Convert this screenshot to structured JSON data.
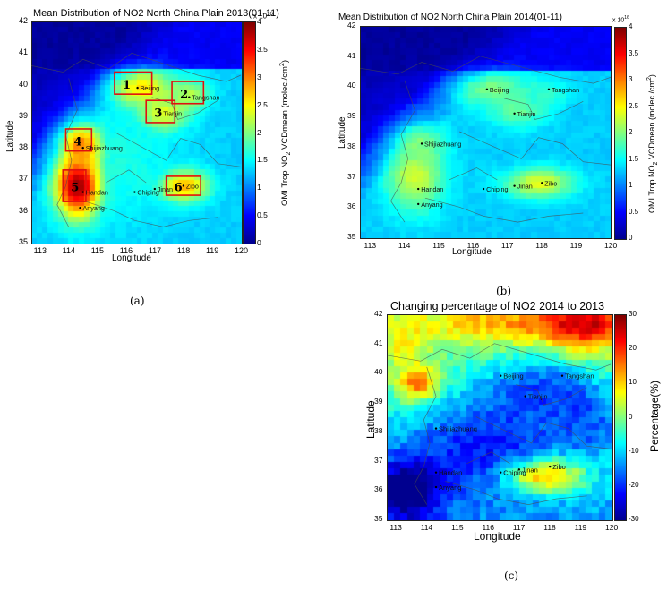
{
  "chart_data": [
    {
      "type": "heatmap",
      "title": "Mean Distribution of NO2 North China Plain 2013(01-11)",
      "xlabel": "Longitude",
      "ylabel": "Latitude",
      "colorbar_label": "OMI Trop NO",
      "colorbar_label_sub": "2",
      "colorbar_label_tail": " VCDmean (molec./cm",
      "colorbar_label_sup": "2",
      "colorbar_label_end": ")",
      "colorbar_exponent": "x 10",
      "colorbar_exponent_sup": "16",
      "xlim": [
        112.7,
        120
      ],
      "ylim": [
        35,
        42
      ],
      "x_ticks": [
        "113",
        "114",
        "115",
        "116",
        "117",
        "118",
        "119",
        "120"
      ],
      "y_ticks": [
        "35",
        "36",
        "37",
        "38",
        "39",
        "40",
        "41",
        "42"
      ],
      "colorbar_range": [
        0,
        4
      ],
      "colorbar_ticks": [
        "0",
        "0.5",
        "1",
        "1.5",
        "2",
        "2.5",
        "3",
        "3.5",
        "4"
      ],
      "cities": [
        {
          "name": "Beijing",
          "lon": 116.4,
          "lat": 39.9
        },
        {
          "name": "Tangshan",
          "lon": 118.2,
          "lat": 39.6
        },
        {
          "name": "Tianjin",
          "lon": 117.2,
          "lat": 39.1
        },
        {
          "name": "Shijiazhuang",
          "lon": 114.5,
          "lat": 38.0
        },
        {
          "name": "Handan",
          "lon": 114.5,
          "lat": 36.6
        },
        {
          "name": "Anyang",
          "lon": 114.4,
          "lat": 36.1
        },
        {
          "name": "Chiping",
          "lon": 116.3,
          "lat": 36.6
        },
        {
          "name": "Jinan",
          "lon": 117.0,
          "lat": 36.7
        },
        {
          "name": "Zibo",
          "lon": 118.0,
          "lat": 36.8
        }
      ],
      "regions": [
        {
          "label": "1",
          "lon_min": 115.6,
          "lon_max": 116.9,
          "lat_min": 39.7,
          "lat_max": 40.4
        },
        {
          "label": "2",
          "lon_min": 117.6,
          "lon_max": 118.7,
          "lat_min": 39.4,
          "lat_max": 40.1
        },
        {
          "label": "3",
          "lon_min": 116.7,
          "lon_max": 117.7,
          "lat_min": 38.8,
          "lat_max": 39.5
        },
        {
          "label": "4",
          "lon_min": 113.9,
          "lon_max": 114.8,
          "lat_min": 37.9,
          "lat_max": 38.6
        },
        {
          "label": "5",
          "lon_min": 113.8,
          "lon_max": 114.6,
          "lat_min": 36.3,
          "lat_max": 37.3
        },
        {
          "label": "6",
          "lon_min": 117.4,
          "lon_max": 118.6,
          "lat_min": 36.5,
          "lat_max": 37.1
        }
      ],
      "hotspots": [
        {
          "lon": 114.3,
          "lat": 36.8,
          "value": 3.9,
          "sx": 0.55,
          "sy": 0.7
        },
        {
          "lon": 114.4,
          "lat": 38.1,
          "value": 3.0,
          "sx": 0.5,
          "sy": 0.5
        },
        {
          "lon": 116.5,
          "lat": 39.9,
          "value": 2.6,
          "sx": 0.8,
          "sy": 0.4
        },
        {
          "lon": 117.3,
          "lat": 39.1,
          "value": 2.4,
          "sx": 0.6,
          "sy": 0.4
        },
        {
          "lon": 118.2,
          "lat": 39.7,
          "value": 2.2,
          "sx": 0.5,
          "sy": 0.35
        },
        {
          "lon": 118.0,
          "lat": 36.8,
          "value": 2.8,
          "sx": 0.6,
          "sy": 0.35
        },
        {
          "lon": 115.5,
          "lat": 37.5,
          "value": 1.6,
          "sx": 1.6,
          "sy": 1.3
        }
      ],
      "caption": "(a)"
    },
    {
      "type": "heatmap",
      "title": "Mean Distribution of NO2 North China Plain 2014(01-11)",
      "xlabel": "Longitude",
      "ylabel": "Latitude",
      "colorbar_label": "OMI Trop NO",
      "colorbar_label_sub": "2",
      "colorbar_label_tail": " VCDmean (molec./cm",
      "colorbar_label_sup": "2",
      "colorbar_label_end": ")",
      "colorbar_exponent": "x 10",
      "colorbar_exponent_sup": "16",
      "xlim": [
        112.7,
        120
      ],
      "ylim": [
        35,
        42
      ],
      "x_ticks": [
        "113",
        "114",
        "115",
        "116",
        "117",
        "118",
        "119",
        "120"
      ],
      "y_ticks": [
        "35",
        "36",
        "37",
        "38",
        "39",
        "40",
        "41",
        "42"
      ],
      "colorbar_range": [
        0,
        4
      ],
      "colorbar_ticks": [
        "0",
        "0.5",
        "1",
        "1.5",
        "2",
        "2.5",
        "3",
        "3.5",
        "4"
      ],
      "cities": [
        {
          "name": "Beijing",
          "lon": 116.4,
          "lat": 39.9
        },
        {
          "name": "Tangshan",
          "lon": 118.2,
          "lat": 39.9
        },
        {
          "name": "Tianjin",
          "lon": 117.2,
          "lat": 39.1
        },
        {
          "name": "Shijiazhuang",
          "lon": 114.5,
          "lat": 38.1
        },
        {
          "name": "Handan",
          "lon": 114.4,
          "lat": 36.6
        },
        {
          "name": "Anyang",
          "lon": 114.4,
          "lat": 36.1
        },
        {
          "name": "Chiping",
          "lon": 116.3,
          "lat": 36.6
        },
        {
          "name": "Jinan",
          "lon": 117.2,
          "lat": 36.7
        },
        {
          "name": "Zibo",
          "lon": 118.0,
          "lat": 36.8
        }
      ],
      "hotspots": [
        {
          "lon": 114.3,
          "lat": 37.0,
          "value": 2.3,
          "sx": 0.6,
          "sy": 0.8
        },
        {
          "lon": 114.4,
          "lat": 38.1,
          "value": 2.0,
          "sx": 0.5,
          "sy": 0.5
        },
        {
          "lon": 116.5,
          "lat": 39.9,
          "value": 2.0,
          "sx": 0.8,
          "sy": 0.4
        },
        {
          "lon": 117.3,
          "lat": 39.2,
          "value": 1.9,
          "sx": 0.6,
          "sy": 0.4
        },
        {
          "lon": 118.1,
          "lat": 39.8,
          "value": 1.7,
          "sx": 0.5,
          "sy": 0.35
        },
        {
          "lon": 117.9,
          "lat": 36.8,
          "value": 2.4,
          "sx": 0.7,
          "sy": 0.35
        },
        {
          "lon": 115.5,
          "lat": 37.5,
          "value": 1.2,
          "sx": 1.6,
          "sy": 1.3
        }
      ],
      "caption": "(b)"
    },
    {
      "type": "heatmap",
      "title": "Changing percentage of NO2 2014 to 2013",
      "xlabel": "Longitude",
      "ylabel": "Latitude",
      "colorbar_label": "Percentage(%)",
      "xlim": [
        112.7,
        120
      ],
      "ylim": [
        35,
        42
      ],
      "x_ticks": [
        "113",
        "114",
        "115",
        "116",
        "117",
        "118",
        "119",
        "120"
      ],
      "y_ticks": [
        "35",
        "36",
        "37",
        "38",
        "39",
        "40",
        "41",
        "42"
      ],
      "colorbar_range": [
        -30,
        30
      ],
      "colorbar_ticks": [
        "-30",
        "-20",
        "-10",
        "0",
        "10",
        "20",
        "30"
      ],
      "cities": [
        {
          "name": "Beijing",
          "lon": 116.4,
          "lat": 39.9
        },
        {
          "name": "Tangshan",
          "lon": 118.4,
          "lat": 39.9
        },
        {
          "name": "Tianjin",
          "lon": 117.2,
          "lat": 39.2
        },
        {
          "name": "Shijiazhuang",
          "lon": 114.3,
          "lat": 38.1
        },
        {
          "name": "Handan",
          "lon": 114.3,
          "lat": 36.6
        },
        {
          "name": "Anyang",
          "lon": 114.3,
          "lat": 36.1
        },
        {
          "name": "Chiping",
          "lon": 116.4,
          "lat": 36.6
        },
        {
          "name": "Jinan",
          "lon": 117.0,
          "lat": 36.7
        },
        {
          "name": "Zibo",
          "lon": 118.0,
          "lat": 36.8
        }
      ],
      "hotspots": [
        {
          "lon": 117.8,
          "lat": 36.5,
          "value": 26,
          "sx": 0.9,
          "sy": 0.45
        },
        {
          "lon": 119.2,
          "lat": 41.6,
          "value": 22,
          "sx": 1.0,
          "sy": 0.6
        },
        {
          "lon": 116.5,
          "lat": 41.7,
          "value": 12,
          "sx": 1.8,
          "sy": 0.5
        },
        {
          "lon": 113.7,
          "lat": 39.6,
          "value": 20,
          "sx": 0.5,
          "sy": 0.4
        },
        {
          "lon": 113.2,
          "lat": 40.9,
          "value": 8,
          "sx": 0.7,
          "sy": 0.6
        },
        {
          "lon": 116.0,
          "lat": 37.6,
          "value": -14,
          "sx": 1.8,
          "sy": 1.2
        },
        {
          "lon": 113.3,
          "lat": 36.0,
          "value": -22,
          "sx": 0.8,
          "sy": 0.8
        },
        {
          "lon": 117.6,
          "lat": 39.6,
          "value": -12,
          "sx": 1.2,
          "sy": 0.7
        },
        {
          "lon": 119.3,
          "lat": 38.5,
          "value": -9,
          "sx": 0.8,
          "sy": 0.8
        }
      ],
      "caption": "(c)"
    }
  ],
  "layout_text": {
    "caption_a": "(a)",
    "caption_b": "(b)",
    "caption_c": "(c)"
  },
  "colors": {
    "jet": [
      "#00008f",
      "#0000ff",
      "#0080ff",
      "#00ffff",
      "#80ff80",
      "#ffff00",
      "#ff8000",
      "#ff0000",
      "#800000"
    ],
    "region_box": "#e01010",
    "boundary": "#4a4a4a"
  }
}
